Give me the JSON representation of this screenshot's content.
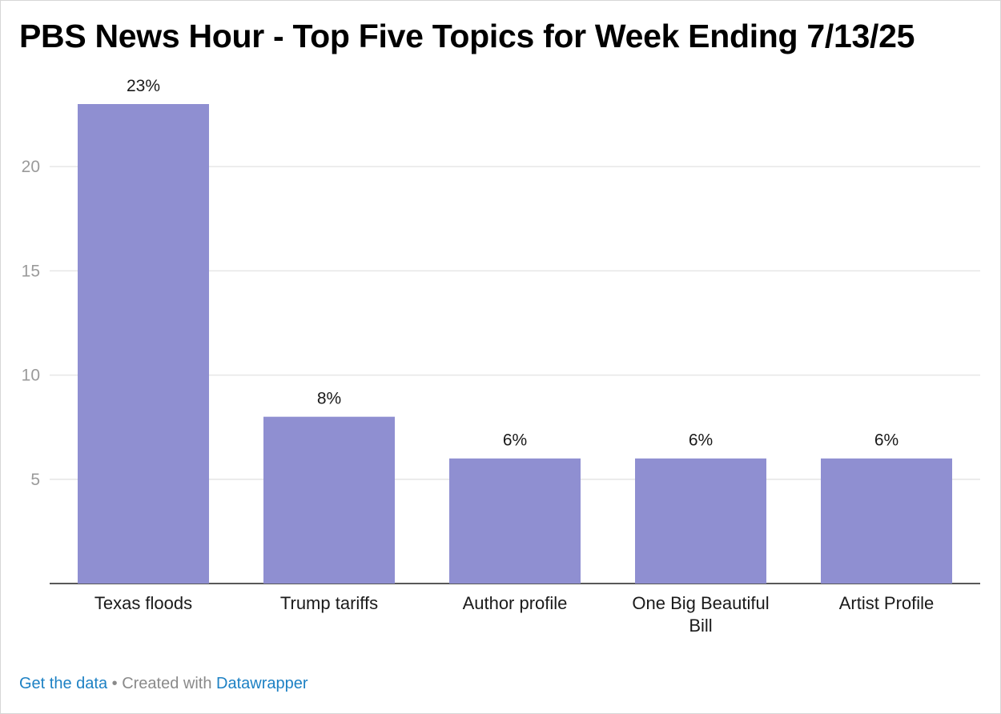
{
  "chart_data": {
    "type": "bar",
    "title": "PBS News Hour - Top Five Topics for Week Ending 7/13/25",
    "categories": [
      [
        "Texas floods"
      ],
      [
        "Trump tariffs"
      ],
      [
        "Author profile"
      ],
      [
        "One Big Beautiful",
        "Bill"
      ],
      [
        "Artist Profile"
      ]
    ],
    "values": [
      23,
      8,
      6,
      6,
      6
    ],
    "data_labels": [
      "23%",
      "8%",
      "6%",
      "6%",
      "6%"
    ],
    "yticks": [
      5,
      10,
      15,
      20
    ],
    "ylim": [
      0,
      23
    ],
    "grid": true,
    "bar_color": "#8f8fd1"
  },
  "footer": {
    "get_data": "Get the data",
    "separator": " • Created with ",
    "tool": "Datawrapper"
  }
}
